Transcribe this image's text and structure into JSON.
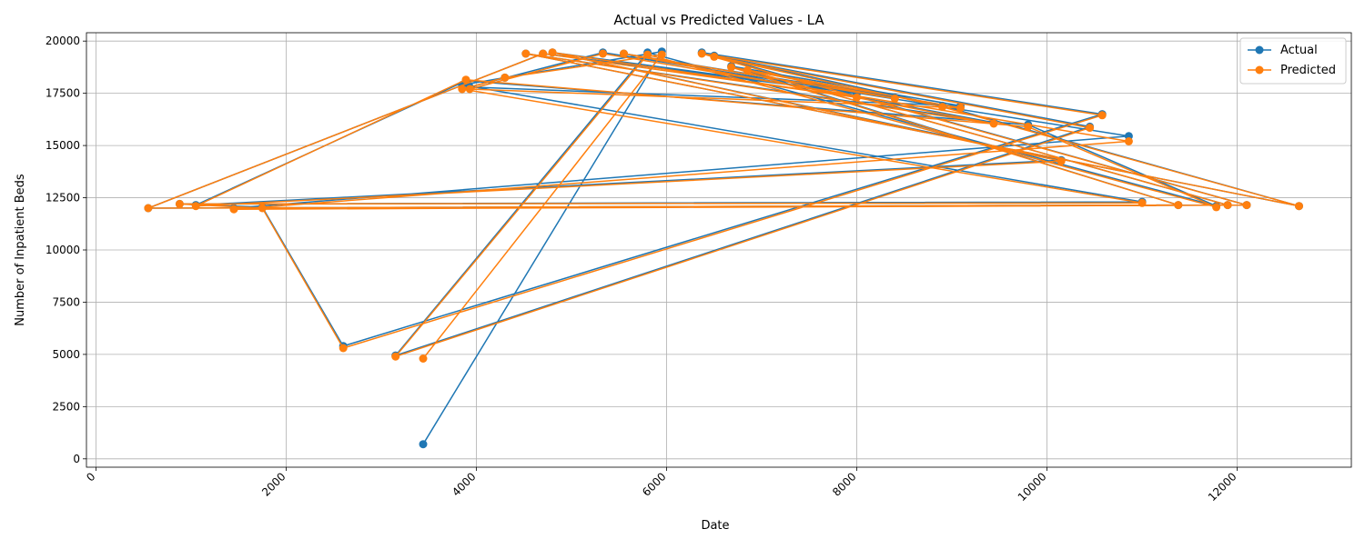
{
  "chart_data": {
    "type": "line",
    "title": "Actual vs Predicted Values - LA",
    "xlabel": "Date",
    "ylabel": "Number of Inpatient Beds",
    "xlim": [
      -100,
      13200
    ],
    "ylim": [
      -400,
      20400
    ],
    "xticks": [
      0,
      2000,
      4000,
      6000,
      8000,
      10000,
      12000
    ],
    "yticks": [
      0,
      2500,
      5000,
      7500,
      10000,
      12500,
      15000,
      17500,
      20000
    ],
    "grid": true,
    "legend_position": "top-right",
    "x": [
      3440,
      5950,
      4300,
      3850,
      11000,
      880,
      1750,
      2600,
      10580,
      6370,
      12100,
      1450,
      10860,
      5330,
      3930,
      9090,
      6680,
      11380,
      550,
      4700,
      8000,
      4800,
      10150,
      1050,
      3890,
      9800,
      11780,
      5800,
      3150,
      10450,
      6500,
      8900,
      12650,
      4520,
      9440,
      5550,
      8400,
      6850,
      11900
    ],
    "series": [
      {
        "name": "Actual",
        "color": "#1f77b4",
        "values": [
          700,
          19500,
          18250,
          17900,
          12300,
          12200,
          12050,
          5400,
          16500,
          19450,
          12150,
          12000,
          15450,
          19450,
          17800,
          16900,
          18800,
          12150,
          12000,
          19400,
          17500,
          19450,
          14300,
          12150,
          18100,
          16000,
          12100,
          19450,
          4950,
          15900,
          19300,
          16900,
          12100,
          19400,
          16100,
          19400,
          17300,
          18600,
          12150
        ]
      },
      {
        "name": "Predicted",
        "color": "#ff7f0e",
        "values": [
          4800,
          19350,
          18250,
          17700,
          12250,
          12200,
          12000,
          5300,
          16450,
          19400,
          12150,
          11950,
          15200,
          19400,
          17700,
          16800,
          18750,
          12150,
          12000,
          19400,
          17300,
          19450,
          14250,
          12100,
          18150,
          15900,
          12050,
          19350,
          4900,
          15850,
          19250,
          16850,
          12100,
          19400,
          16050,
          19400,
          17250,
          18600,
          12150
        ]
      }
    ]
  }
}
